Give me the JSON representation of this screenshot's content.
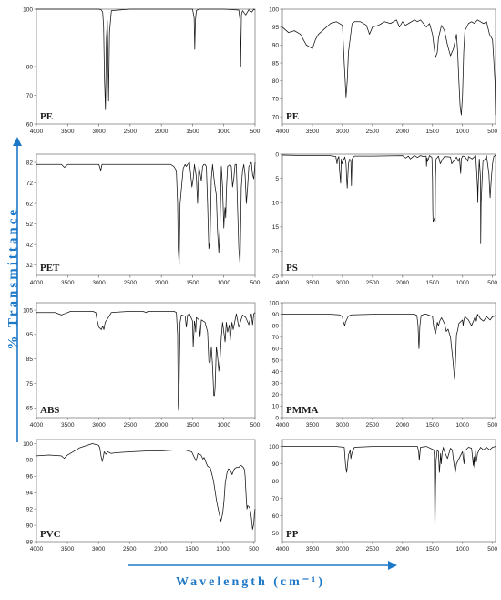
{
  "axes_titles": {
    "y": "% Transmittance",
    "x": "Wavelength (cm⁻¹)"
  },
  "colors": {
    "axis_title": "#1e78c8",
    "arrow": "#1e78c8",
    "spectrum": "#111111"
  },
  "chart_data": [
    {
      "type": "line",
      "name": "PE",
      "label": "PE",
      "xlim": [
        4000,
        500
      ],
      "ylim": [
        60,
        100
      ],
      "xticks": [
        4000,
        3500,
        3000,
        2500,
        2000,
        1500,
        1000,
        500
      ],
      "yticks": [
        60,
        70,
        80,
        100
      ],
      "grid": false,
      "x": [
        4000,
        3000,
        2960,
        2940,
        2925,
        2910,
        2895,
        2880,
        2865,
        2855,
        2845,
        2830,
        2800,
        2500,
        2000,
        1600,
        1500,
        1475,
        1465,
        1455,
        1440,
        1400,
        1000,
        760,
        740,
        730,
        718,
        700,
        650,
        600,
        550,
        520,
        500
      ],
      "y": [
        100,
        100,
        99.7,
        99,
        94,
        75,
        65,
        90,
        96,
        84,
        68,
        92,
        99.5,
        100,
        100,
        100,
        100,
        97,
        86,
        96,
        99.5,
        100,
        100,
        99.7,
        96,
        80,
        98,
        99.5,
        98,
        99.8,
        99,
        100,
        99.8
      ]
    },
    {
      "type": "line",
      "name": "PE",
      "label": "PE",
      "xlim": [
        4000,
        450
      ],
      "ylim": [
        68,
        100
      ],
      "xticks": [
        4000,
        3500,
        3000,
        2500,
        2000,
        1500,
        1000,
        500
      ],
      "yticks": [
        70,
        75,
        80,
        85,
        90,
        95,
        100
      ],
      "grid": false,
      "x": [
        4000,
        3900,
        3800,
        3700,
        3600,
        3500,
        3450,
        3400,
        3300,
        3200,
        3100,
        3000,
        2970,
        2940,
        2920,
        2900,
        2870,
        2840,
        2800,
        2700,
        2600,
        2550,
        2500,
        2400,
        2350,
        2300,
        2200,
        2100,
        2050,
        2000,
        1950,
        1900,
        1800,
        1750,
        1700,
        1650,
        1600,
        1550,
        1500,
        1470,
        1450,
        1420,
        1400,
        1350,
        1300,
        1250,
        1200,
        1150,
        1100,
        1080,
        1060,
        1040,
        1020,
        1000,
        980,
        960,
        900,
        850,
        800,
        750,
        700,
        650,
        600,
        550,
        500,
        480,
        460,
        450
      ],
      "y": [
        95,
        93.5,
        94,
        93,
        90,
        89,
        91.5,
        93,
        94.5,
        96,
        96.5,
        95.5,
        85,
        75.5,
        80,
        88,
        92,
        96,
        96.5,
        96.5,
        95.5,
        93,
        95,
        95.5,
        96,
        96.5,
        96,
        97,
        95,
        96.5,
        95.5,
        96,
        97,
        96.5,
        97,
        96,
        95,
        96,
        93,
        89,
        86.5,
        88,
        92,
        95.5,
        94,
        90,
        87,
        89,
        93,
        88,
        80,
        73,
        70.5,
        76,
        88,
        94,
        96,
        96.5,
        96,
        97,
        96.5,
        96,
        96.5,
        93,
        91.5,
        86,
        80,
        70.5
      ]
    },
    {
      "type": "line",
      "name": "PET",
      "label": "PET",
      "xlim": [
        4000,
        500
      ],
      "ylim": [
        27,
        86
      ],
      "xticks": [
        4000,
        3500,
        3000,
        2500,
        2000,
        1500,
        1000,
        500
      ],
      "yticks": [
        32,
        42,
        52,
        62,
        72,
        82
      ],
      "grid": false,
      "x": [
        4000,
        3600,
        3550,
        3500,
        3000,
        2970,
        2950,
        2500,
        2000,
        1900,
        1850,
        1800,
        1760,
        1740,
        1730,
        1715,
        1700,
        1650,
        1620,
        1600,
        1580,
        1550,
        1510,
        1490,
        1470,
        1440,
        1420,
        1400,
        1360,
        1340,
        1320,
        1300,
        1280,
        1260,
        1240,
        1220,
        1200,
        1180,
        1160,
        1140,
        1120,
        1100,
        1080,
        1060,
        1040,
        1020,
        1000,
        990,
        980,
        970,
        960,
        940,
        900,
        880,
        860,
        840,
        820,
        800,
        780,
        760,
        740,
        730,
        720,
        700,
        680,
        660,
        640,
        620,
        600,
        580,
        560,
        540,
        520,
        500
      ],
      "y": [
        81,
        81,
        79.5,
        81,
        81,
        78,
        81,
        81,
        81,
        81,
        81,
        80,
        78,
        62,
        40,
        32,
        62,
        79,
        81,
        80,
        81,
        82,
        70,
        74,
        81,
        75,
        62,
        80,
        73,
        80,
        81,
        81,
        80,
        62,
        40,
        44,
        74,
        81,
        75,
        70,
        66,
        48,
        38,
        52,
        80,
        70,
        50,
        57,
        60,
        55,
        68,
        80,
        81,
        80,
        70,
        74,
        81,
        81,
        60,
        40,
        32,
        50,
        70,
        78,
        81,
        76,
        62,
        70,
        80,
        81,
        82,
        76,
        74,
        82
      ]
    },
    {
      "type": "line",
      "name": "PS",
      "label": "PS",
      "xlim": [
        4000,
        450
      ],
      "ylim": [
        25,
        0
      ],
      "xticks": [
        4000,
        3500,
        3000,
        2500,
        2000,
        1500,
        1000,
        500
      ],
      "yticks": [
        0,
        5,
        10,
        15,
        20,
        25
      ],
      "grid": false,
      "x": [
        4000,
        3600,
        3200,
        3110,
        3090,
        3080,
        3060,
        3050,
        3030,
        3020,
        3010,
        2960,
        2940,
        2930,
        2920,
        2900,
        2880,
        2860,
        2850,
        2840,
        2800,
        2500,
        2000,
        1950,
        1900,
        1870,
        1800,
        1750,
        1700,
        1650,
        1605,
        1600,
        1590,
        1580,
        1550,
        1510,
        1500,
        1495,
        1490,
        1460,
        1455,
        1450,
        1440,
        1400,
        1370,
        1330,
        1300,
        1200,
        1180,
        1150,
        1100,
        1070,
        1050,
        1030,
        1020,
        1000,
        960,
        910,
        900,
        840,
        780,
        760,
        750,
        745,
        740,
        720,
        700,
        697,
        690,
        660,
        620,
        600,
        560,
        545,
        540,
        520,
        500,
        480,
        460,
        450
      ],
      "y": [
        0.2,
        0.3,
        0.3,
        0.5,
        2,
        1,
        0.5,
        3,
        6,
        1,
        2,
        0.6,
        2,
        5,
        7,
        2,
        1,
        1.5,
        6.5,
        1,
        0.4,
        0.4,
        0.3,
        0.8,
        0.4,
        1,
        0.3,
        0.7,
        0.3,
        0.5,
        0.4,
        2.5,
        0.8,
        1.5,
        0.3,
        0.7,
        5,
        12,
        14,
        13,
        14,
        5,
        1,
        0.4,
        2,
        1,
        0.5,
        0.6,
        2,
        1.5,
        0.6,
        1.5,
        0.8,
        4,
        1,
        0.4,
        0.5,
        1.5,
        0.5,
        1,
        0.3,
        4.5,
        7,
        10,
        7,
        1,
        5,
        18.5,
        10,
        1.5,
        1,
        0.3,
        4,
        8,
        9,
        5,
        2,
        0.5,
        0.3,
        0.2
      ]
    },
    {
      "type": "line",
      "name": "ABS",
      "label": "ABS",
      "xlim": [
        4000,
        500
      ],
      "ylim": [
        61,
        108
      ],
      "xticks": [
        4000,
        3500,
        3000,
        2500,
        2000,
        1500,
        1000,
        500
      ],
      "yticks": [
        65,
        75,
        85,
        95,
        105
      ],
      "grid": false,
      "x": [
        4000,
        3700,
        3600,
        3550,
        3450,
        3100,
        3050,
        3030,
        3000,
        2960,
        2940,
        2920,
        2900,
        2860,
        2800,
        2500,
        2300,
        2237,
        2220,
        2000,
        1800,
        1760,
        1740,
        1730,
        1725,
        1715,
        1700,
        1680,
        1620,
        1600,
        1580,
        1550,
        1500,
        1495,
        1490,
        1470,
        1455,
        1450,
        1440,
        1400,
        1380,
        1360,
        1300,
        1260,
        1240,
        1220,
        1200,
        1180,
        1160,
        1150,
        1140,
        1120,
        1100,
        1080,
        1060,
        1040,
        1020,
        1000,
        980,
        960,
        940,
        910,
        900,
        870,
        850,
        800,
        760,
        700,
        650,
        600,
        560,
        540,
        520,
        500
      ],
      "y": [
        104,
        104,
        103,
        103.5,
        104.5,
        104.5,
        104,
        101,
        98,
        97,
        98.5,
        97,
        100,
        101.5,
        104,
        104.5,
        104.5,
        104,
        104.5,
        104.5,
        104.5,
        104,
        95,
        66,
        64,
        75,
        100,
        103,
        102.5,
        98,
        103,
        103.5,
        100.5,
        95,
        90,
        100.5,
        98,
        96,
        102,
        101,
        94,
        101,
        100,
        96,
        84,
        83,
        90,
        82,
        70,
        70,
        73,
        90,
        86,
        80,
        85,
        94,
        100,
        96,
        92,
        100,
        96,
        99,
        92,
        100,
        97,
        103.5,
        98,
        103,
        102,
        99,
        103.5,
        99,
        103.5,
        104
      ]
    },
    {
      "type": "line",
      "name": "PMMA",
      "label": "PMMA",
      "xlim": [
        4000,
        450
      ],
      "ylim": [
        0,
        100
      ],
      "xticks": [
        4000,
        3500,
        3000,
        2500,
        2000,
        1500,
        1000,
        500
      ],
      "yticks": [
        0,
        10,
        20,
        30,
        40,
        50,
        60,
        70,
        80,
        90,
        100
      ],
      "grid": false,
      "x": [
        4000,
        3600,
        3200,
        3050,
        3000,
        2990,
        2960,
        2950,
        2900,
        2850,
        2500,
        2000,
        1800,
        1760,
        1740,
        1730,
        1725,
        1710,
        1690,
        1640,
        1600,
        1500,
        1480,
        1450,
        1435,
        1420,
        1400,
        1380,
        1350,
        1300,
        1270,
        1240,
        1200,
        1180,
        1160,
        1140,
        1130,
        1120,
        1100,
        1080,
        1060,
        1000,
        990,
        980,
        960,
        900,
        850,
        810,
        790,
        770,
        750,
        700,
        650,
        600,
        560,
        540,
        500,
        480,
        450
      ],
      "y": [
        90,
        90,
        90,
        89.5,
        88,
        84,
        80,
        83,
        88.5,
        89.5,
        90,
        90,
        90,
        89,
        80,
        65,
        60,
        80,
        89,
        90,
        90,
        88,
        79,
        73,
        77,
        83,
        80,
        84,
        87,
        82,
        75,
        77,
        70,
        60,
        50,
        38,
        33,
        45,
        72,
        76,
        82,
        85,
        80,
        84,
        88,
        85,
        80,
        85,
        88,
        84,
        90,
        86,
        84,
        88,
        86,
        85,
        88,
        88,
        89
      ]
    },
    {
      "type": "line",
      "name": "PVC",
      "label": "PVC",
      "xlim": [
        4000,
        480
      ],
      "ylim": [
        88,
        100.5
      ],
      "xticks": [
        4000,
        3500,
        3000,
        2500,
        2000,
        1500,
        1000,
        500
      ],
      "yticks": [
        88,
        90,
        92,
        94,
        96,
        98,
        100
      ],
      "grid": false,
      "x": [
        4000,
        3800,
        3600,
        3550,
        3500,
        3300,
        3100,
        3000,
        2980,
        2960,
        2940,
        2920,
        2910,
        2880,
        2850,
        2800,
        2700,
        2500,
        2200,
        2000,
        1800,
        1600,
        1500,
        1450,
        1430,
        1400,
        1350,
        1320,
        1300,
        1260,
        1240,
        1200,
        1150,
        1100,
        1060,
        1030,
        1000,
        980,
        960,
        930,
        910,
        880,
        850,
        820,
        800,
        770,
        740,
        720,
        700,
        670,
        650,
        640,
        620,
        610,
        600,
        580,
        560,
        540,
        520,
        500,
        490,
        480
      ],
      "y": [
        98.5,
        98.6,
        98.5,
        98.2,
        98.6,
        99.5,
        100,
        99.8,
        99.5,
        98.5,
        97.8,
        98.5,
        99,
        98.7,
        99,
        98.8,
        98.9,
        99,
        99.1,
        99.1,
        99.2,
        99.2,
        99,
        98.2,
        97.9,
        98.8,
        98.6,
        98.1,
        98.3,
        97.5,
        97.2,
        97,
        95.5,
        93,
        91.5,
        90.5,
        91.5,
        93,
        95.2,
        96.5,
        96.9,
        96.8,
        96.2,
        96.8,
        97,
        97.1,
        97.1,
        97.3,
        97.3,
        97.1,
        96.8,
        96,
        93,
        92,
        92.4,
        92.3,
        92,
        91,
        89.5,
        90.2,
        91.5,
        92
      ]
    },
    {
      "type": "line",
      "name": "PP",
      "label": "PP",
      "xlim": [
        4000,
        450
      ],
      "ylim": [
        45,
        104
      ],
      "xticks": [
        4000,
        3500,
        3000,
        2500,
        2000,
        1500,
        1000,
        500
      ],
      "yticks": [
        50,
        60,
        70,
        80,
        90,
        100
      ],
      "grid": false,
      "x": [
        4000,
        3500,
        3100,
        2970,
        2960,
        2950,
        2930,
        2920,
        2900,
        2870,
        2860,
        2840,
        2800,
        2500,
        2200,
        2000,
        1750,
        1730,
        1720,
        1700,
        1600,
        1480,
        1470,
        1465,
        1460,
        1455,
        1450,
        1440,
        1420,
        1400,
        1395,
        1385,
        1375,
        1365,
        1355,
        1340,
        1320,
        1300,
        1250,
        1200,
        1170,
        1150,
        1120,
        1100,
        1000,
        990,
        975,
        960,
        900,
        850,
        840,
        820,
        810,
        800,
        790,
        780,
        770,
        750,
        700,
        650,
        600,
        550,
        500,
        450
      ],
      "y": [
        100,
        100,
        100,
        99.5,
        95,
        90,
        85,
        88,
        95,
        98,
        93,
        96.5,
        99.5,
        100,
        100,
        100,
        100,
        97,
        92,
        99.5,
        100,
        98,
        95,
        72,
        50,
        60,
        75,
        92,
        98,
        97,
        92,
        85,
        90,
        96,
        90,
        96,
        99.5,
        97,
        93,
        99,
        98,
        92,
        85,
        90,
        97,
        94,
        90,
        97.5,
        99.5,
        99,
        96,
        89,
        94,
        88,
        99,
        94,
        91,
        96,
        99.5,
        98,
        99.5,
        98,
        99.5,
        100
      ]
    }
  ]
}
